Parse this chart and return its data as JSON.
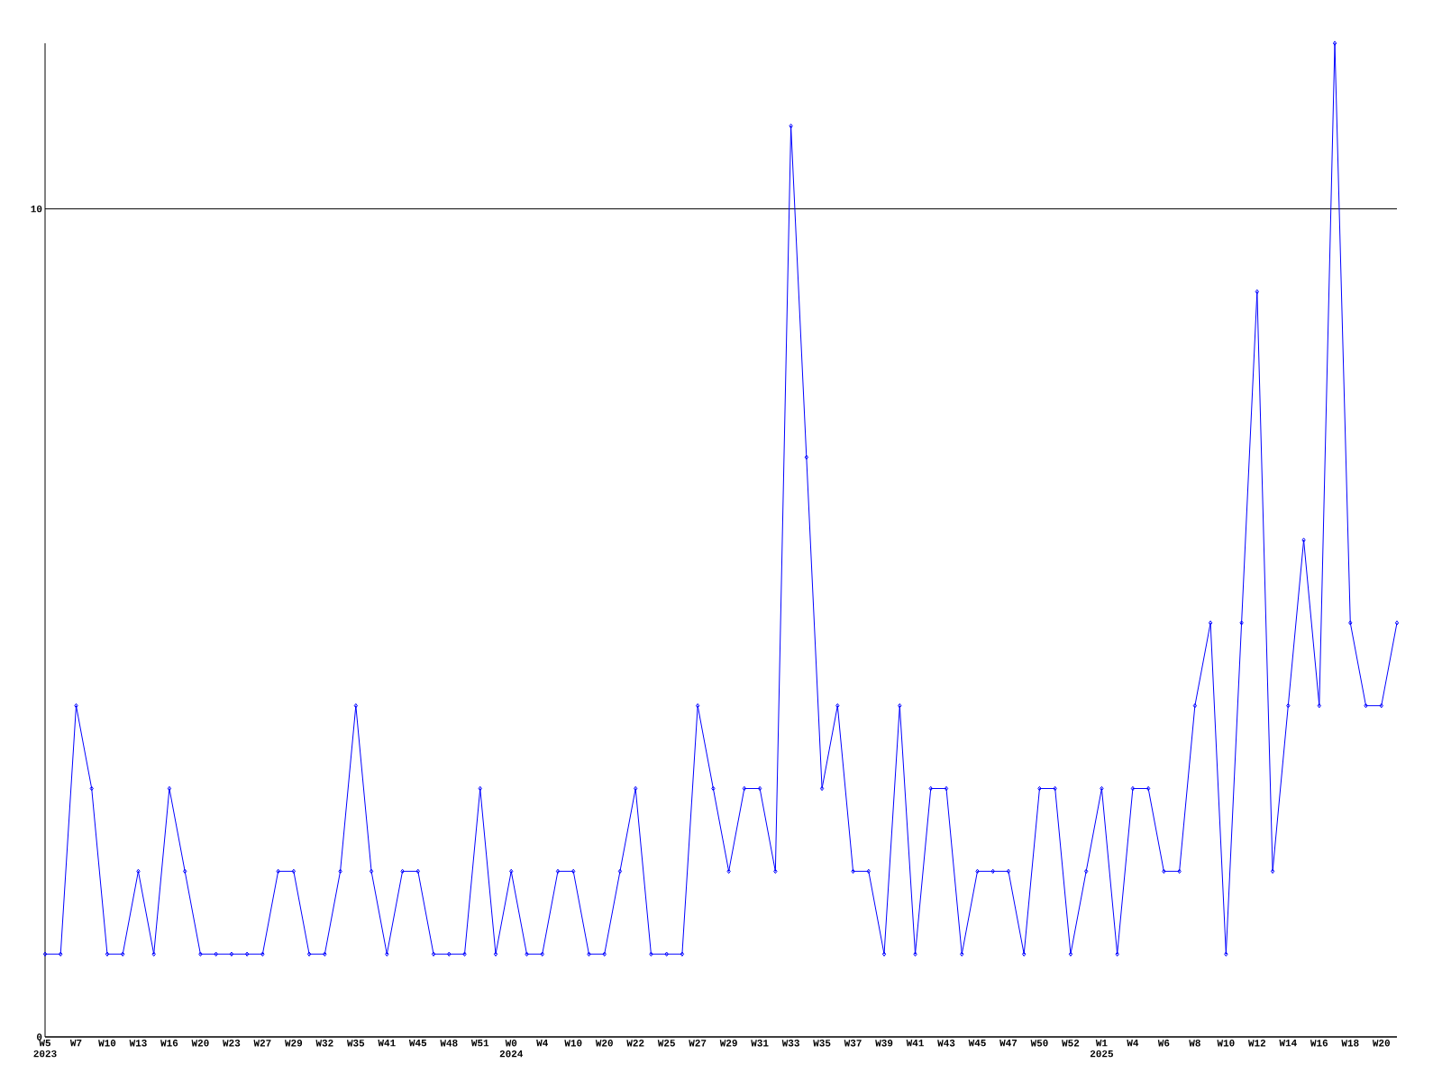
{
  "chart_data": {
    "type": "line",
    "categories": [
      "W5 2023",
      null,
      "W7",
      null,
      "W10",
      null,
      "W13",
      null,
      "W16",
      null,
      "W20",
      null,
      "W23",
      null,
      "W27",
      null,
      "W29",
      null,
      "W32",
      null,
      "W35",
      null,
      "W41",
      null,
      "W45",
      null,
      "W48",
      null,
      "W51",
      null,
      "W0 2024",
      null,
      "W4",
      null,
      "W10",
      null,
      "W20",
      null,
      "W22",
      null,
      "W25",
      null,
      "W27",
      null,
      "W29",
      null,
      "W31",
      null,
      "W33",
      null,
      "W35",
      null,
      "W37",
      null,
      "W39",
      null,
      "W41",
      null,
      "W43",
      null,
      "W45",
      null,
      "W47",
      null,
      "W50",
      null,
      "W52",
      null,
      "W1 2025",
      null,
      "W4",
      null,
      "W6",
      null,
      "W8",
      null,
      "W10",
      null,
      "W12",
      null,
      "W14",
      null,
      "W16",
      null,
      "W18",
      null,
      "W20",
      null
    ],
    "values": [
      1,
      1,
      4,
      3,
      1,
      1,
      2,
      1,
      3,
      2,
      1,
      1,
      1,
      1,
      1,
      2,
      2,
      1,
      1,
      2,
      4,
      2,
      1,
      2,
      2,
      1,
      1,
      1,
      3,
      1,
      2,
      1,
      1,
      2,
      2,
      1,
      1,
      2,
      3,
      1,
      1,
      1,
      4,
      3,
      2,
      3,
      3,
      2,
      11,
      7,
      3,
      4,
      2,
      2,
      1,
      4,
      1,
      3,
      3,
      1,
      2,
      2,
      2,
      1,
      3,
      3,
      1,
      2,
      3,
      1,
      3,
      3,
      2,
      2,
      4,
      5,
      1,
      5,
      9,
      2,
      4,
      6,
      4,
      12,
      5,
      4,
      4,
      5
    ],
    "color": "#0000ff",
    "marker": "diamond",
    "line_style": "solid",
    "ylim": [
      0,
      12
    ],
    "yticks": [
      0,
      10
    ],
    "grid": "y"
  }
}
